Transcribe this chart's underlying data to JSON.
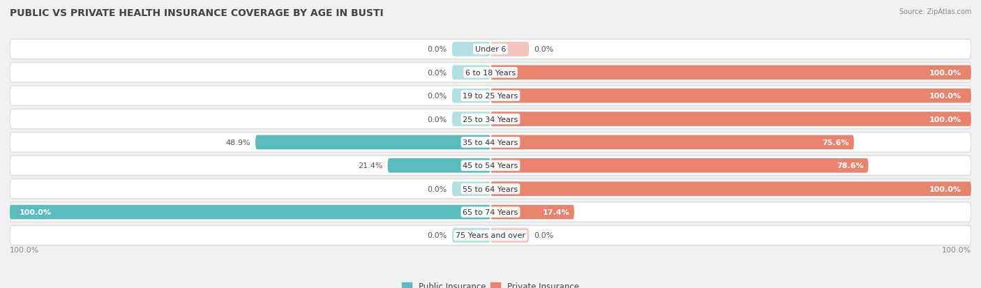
{
  "title": "PUBLIC VS PRIVATE HEALTH INSURANCE COVERAGE BY AGE IN BUSTI",
  "source": "Source: ZipAtlas.com",
  "categories": [
    "Under 6",
    "6 to 18 Years",
    "19 to 25 Years",
    "25 to 34 Years",
    "35 to 44 Years",
    "45 to 54 Years",
    "55 to 64 Years",
    "65 to 74 Years",
    "75 Years and over"
  ],
  "public_values": [
    0.0,
    0.0,
    0.0,
    0.0,
    48.9,
    21.4,
    0.0,
    100.0,
    0.0
  ],
  "private_values": [
    0.0,
    100.0,
    100.0,
    100.0,
    75.6,
    78.6,
    100.0,
    17.4,
    0.0
  ],
  "public_color": "#5bbcbf",
  "private_color": "#e8836e",
  "public_color_light": "#b2dfe0",
  "private_color_light": "#f2c4bb",
  "bg_color": "#f0f0f0",
  "bar_bg_color": "#ffffff",
  "bar_border_color": "#dddddd",
  "title_fontsize": 10,
  "label_fontsize": 8,
  "tick_fontsize": 8,
  "legend_fontsize": 8.5
}
